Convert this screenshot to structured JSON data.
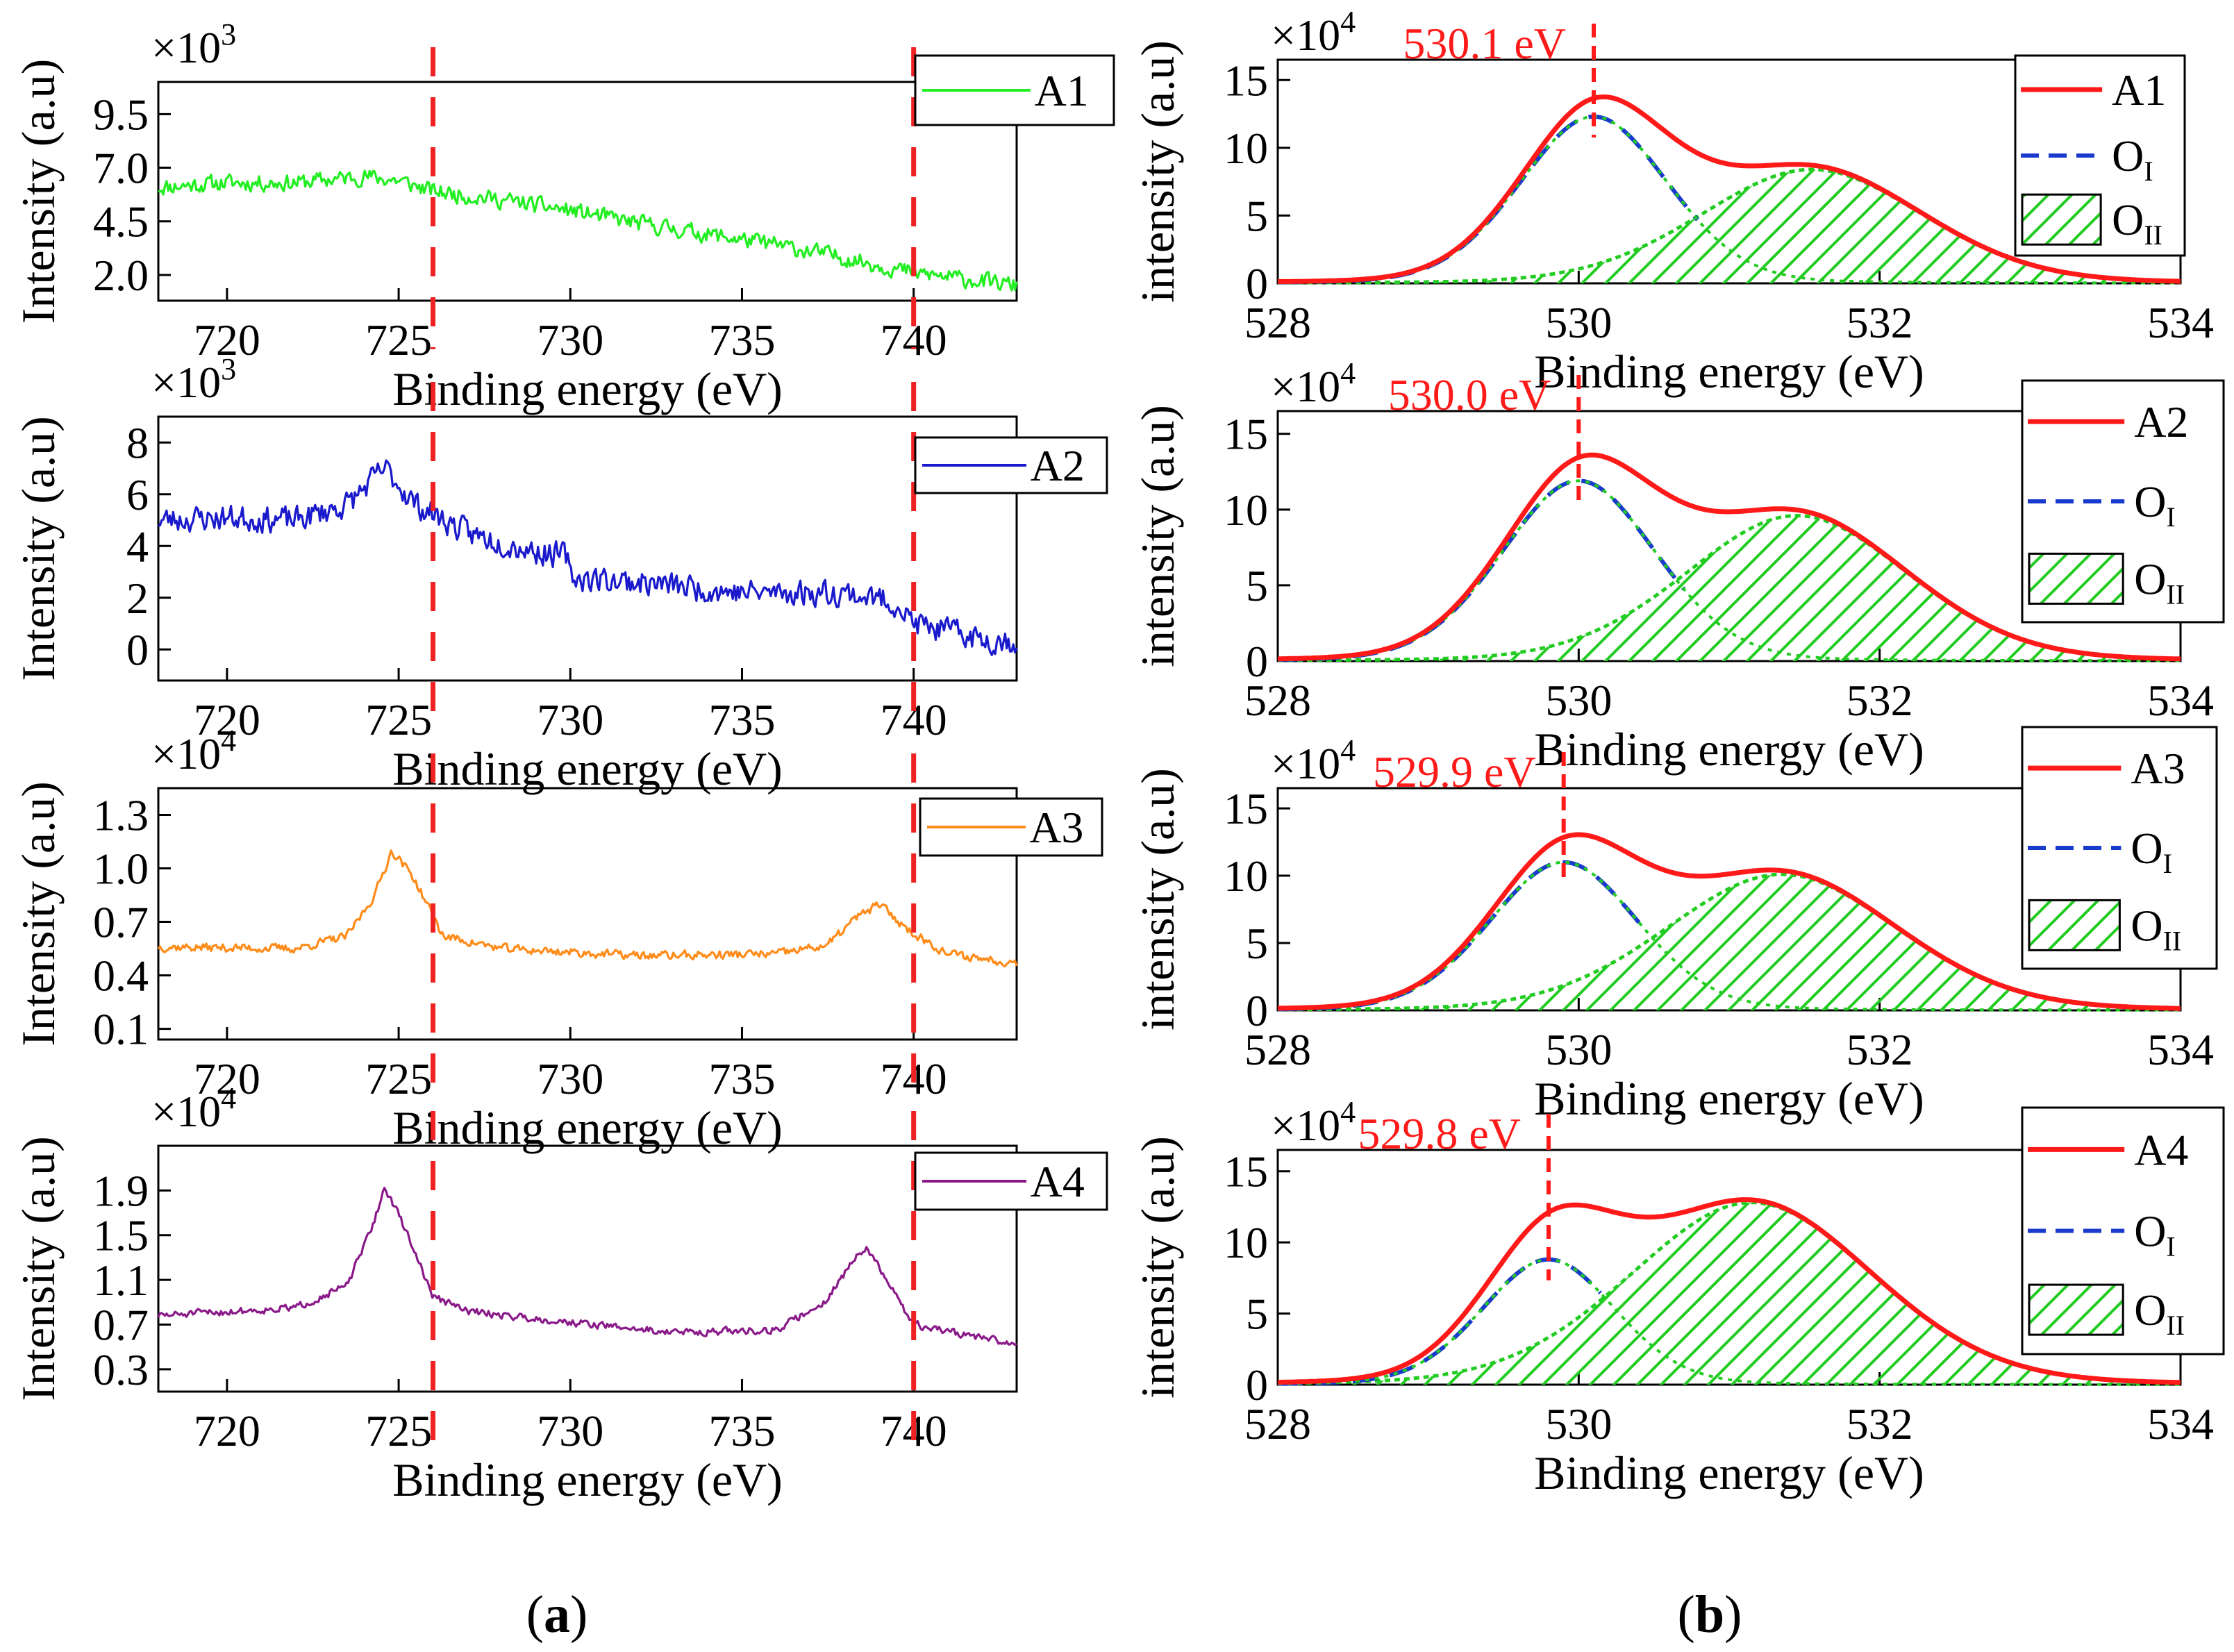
{
  "figure": {
    "panel_labels": [
      {
        "open": "(",
        "letter": "a",
        "close": ")"
      },
      {
        "open": "(",
        "letter": "b",
        "close": ")"
      }
    ]
  },
  "chart_data": [
    {
      "type": "line",
      "id": "a1",
      "xlabel": "Binding energy (eV)",
      "ylabel": "Intensity (a.u)",
      "multiplier_base": "×10",
      "multiplier_exp": "3",
      "xlim": [
        718,
        743
      ],
      "ylim": [
        0.8,
        11.0
      ],
      "xticks": [
        720,
        725,
        730,
        735,
        740
      ],
      "xtick_labels": [
        "720",
        "725",
        "730",
        "735",
        "740"
      ],
      "yticks": [
        2.0,
        4.5,
        7.0,
        9.5
      ],
      "ytick_labels": [
        "2.0",
        "4.5",
        "7.0",
        "9.5"
      ],
      "series": [
        {
          "name": "A1",
          "color": "#22ee22",
          "seed": 11,
          "noise": 0.35,
          "points": [
            [
              718,
              6.1
            ],
            [
              720,
              6.3
            ],
            [
              722,
              6.3
            ],
            [
              724,
              6.6
            ],
            [
              725,
              6.4
            ],
            [
              726,
              5.9
            ],
            [
              728,
              5.5
            ],
            [
              730,
              5.0
            ],
            [
              732,
              4.4
            ],
            [
              734,
              3.9
            ],
            [
              736,
              3.4
            ],
            [
              738,
              2.8
            ],
            [
              740,
              2.1
            ],
            [
              742,
              1.7
            ],
            [
              743,
              1.5
            ]
          ]
        }
      ],
      "vlines": [
        726,
        740
      ],
      "vline_color": "#ee2222",
      "legend_position": "top-right"
    },
    {
      "type": "line",
      "id": "a2",
      "xlabel": "Binding energy (eV)",
      "ylabel": "Intensity (a.u)",
      "multiplier_base": "×10",
      "multiplier_exp": "3",
      "xlim": [
        718,
        743
      ],
      "ylim": [
        -1.2,
        9.0
      ],
      "xticks": [
        720,
        725,
        730,
        735,
        740
      ],
      "xtick_labels": [
        "720",
        "725",
        "730",
        "735",
        "740"
      ],
      "yticks": [
        0,
        2,
        4,
        6,
        8
      ],
      "ytick_labels": [
        "0",
        "2",
        "4",
        "6",
        "8"
      ],
      "series": [
        {
          "name": "A2",
          "color": "#1a1acc",
          "seed": 23,
          "noise": 0.45,
          "points": [
            [
              718,
              5.0
            ],
            [
              720,
              5.1
            ],
            [
              722,
              5.0
            ],
            [
              723.5,
              5.6
            ],
            [
              724.6,
              7.0
            ],
            [
              725.5,
              5.6
            ],
            [
              727,
              4.5
            ],
            [
              729,
              3.8
            ],
            [
              729.9,
              3.6
            ],
            [
              730,
              2.8
            ],
            [
              732,
              2.6
            ],
            [
              735,
              2.2
            ],
            [
              738,
              2.2
            ],
            [
              739.5,
              1.8
            ],
            [
              740,
              1.0
            ],
            [
              742,
              0.4
            ],
            [
              743,
              0.3
            ]
          ]
        }
      ],
      "vlines": [
        726,
        740
      ],
      "vline_color": "#ee2222",
      "legend_position": "top-right"
    },
    {
      "type": "line",
      "id": "a3",
      "xlabel": "Binding energy (eV)",
      "ylabel": "Intensity (a.u)",
      "multiplier_base": "×10",
      "multiplier_exp": "4",
      "xlim": [
        718,
        743
      ],
      "ylim": [
        0.04,
        1.45
      ],
      "xticks": [
        720,
        725,
        730,
        735,
        740
      ],
      "xtick_labels": [
        "720",
        "725",
        "730",
        "735",
        "740"
      ],
      "yticks": [
        0.1,
        0.4,
        0.7,
        1.0,
        1.3
      ],
      "ytick_labels": [
        "0.1",
        "0.4",
        "0.7",
        "1.0",
        "1.3"
      ],
      "series": [
        {
          "name": "A3",
          "color": "#ff8c1a",
          "seed": 37,
          "noise": 0.022,
          "points": [
            [
              718,
              0.56
            ],
            [
              722,
              0.55
            ],
            [
              723.5,
              0.62
            ],
            [
              724.3,
              0.85
            ],
            [
              724.8,
              1.1
            ],
            [
              725.4,
              0.96
            ],
            [
              726.3,
              0.62
            ],
            [
              728,
              0.55
            ],
            [
              732,
              0.51
            ],
            [
              736,
              0.52
            ],
            [
              737.5,
              0.57
            ],
            [
              738.3,
              0.72
            ],
            [
              739,
              0.8
            ],
            [
              739.8,
              0.66
            ],
            [
              741,
              0.52
            ],
            [
              743,
              0.47
            ]
          ]
        }
      ],
      "vlines": [
        726,
        740
      ],
      "vline_color": "#ee2222",
      "legend_position": "top-right"
    },
    {
      "type": "line",
      "id": "a4",
      "xlabel": "Binding energy (eV)",
      "ylabel": "Intensity (a.u)",
      "multiplier_base": "×10",
      "multiplier_exp": "4",
      "xlim": [
        718,
        743
      ],
      "ylim": [
        0.1,
        2.3
      ],
      "xticks": [
        720,
        725,
        730,
        735,
        740
      ],
      "xtick_labels": [
        "720",
        "725",
        "730",
        "735",
        "740"
      ],
      "yticks": [
        0.3,
        0.7,
        1.1,
        1.5,
        1.9
      ],
      "ytick_labels": [
        "0.3",
        "0.7",
        "1.1",
        "1.5",
        "1.9"
      ],
      "series": [
        {
          "name": "A4",
          "color": "#8a1a8a",
          "seed": 51,
          "noise": 0.03,
          "points": [
            [
              718,
              0.78
            ],
            [
              722,
              0.85
            ],
            [
              723.5,
              1.05
            ],
            [
              724.2,
              1.55
            ],
            [
              724.6,
              1.93
            ],
            [
              725.2,
              1.55
            ],
            [
              726,
              0.95
            ],
            [
              727,
              0.82
            ],
            [
              730,
              0.72
            ],
            [
              733,
              0.63
            ],
            [
              736,
              0.65
            ],
            [
              737.4,
              0.9
            ],
            [
              738.2,
              1.25
            ],
            [
              738.6,
              1.4
            ],
            [
              739.3,
              1.05
            ],
            [
              740,
              0.7
            ],
            [
              742,
              0.58
            ],
            [
              743,
              0.52
            ]
          ]
        }
      ],
      "vlines": [
        726,
        740
      ],
      "vline_color": "#ee2222",
      "legend_position": "top-right"
    },
    {
      "type": "area",
      "id": "b1",
      "xlabel": "Binding energy (eV)",
      "ylabel": "intensity (a.u)",
      "multiplier_base": "×10",
      "multiplier_exp": "4",
      "xlim": [
        528,
        534
      ],
      "ylim": [
        0,
        16.5
      ],
      "xticks": [
        528,
        530,
        532,
        534
      ],
      "xtick_labels": [
        "528",
        "530",
        "532",
        "534"
      ],
      "yticks": [
        0,
        5,
        10,
        15
      ],
      "ytick_labels": [
        "0",
        "5",
        "10",
        "15"
      ],
      "peak_label": "530.1 eV",
      "peak_x": 530.1,
      "oi": {
        "center": 530.1,
        "amp": 12.3,
        "sigma": 0.5,
        "shown_until": 530.8
      },
      "oii": {
        "center": 531.55,
        "amp": 8.4,
        "sigma": 0.75
      },
      "sigma_fraction": 0.12,
      "legend": {
        "a_label": "A1",
        "o_label": "O",
        "oi_sub": "I",
        "oii_sub": "II"
      },
      "colors": {
        "total": "#ff1a1a",
        "oi": "#1a3acc",
        "oii": "#22cc22"
      }
    },
    {
      "type": "area",
      "id": "b2",
      "xlabel": "Binding energy (eV)",
      "ylabel": "intensity (a.u)",
      "multiplier_base": "×10",
      "multiplier_exp": "4",
      "xlim": [
        528,
        534
      ],
      "ylim": [
        0,
        16.5
      ],
      "xticks": [
        528,
        530,
        532,
        534
      ],
      "xtick_labels": [
        "528",
        "530",
        "532",
        "534"
      ],
      "yticks": [
        0,
        5,
        10,
        15
      ],
      "ytick_labels": [
        "0",
        "5",
        "10",
        "15"
      ],
      "peak_label": "530.0 eV",
      "peak_x": 530.0,
      "oi": {
        "center": 530.0,
        "amp": 11.9,
        "sigma": 0.52,
        "shown_until": 530.7
      },
      "oii": {
        "center": 531.45,
        "amp": 9.6,
        "sigma": 0.75
      },
      "sigma_fraction": 0.12,
      "legend": {
        "a_label": "A2",
        "o_label": "O",
        "oi_sub": "I",
        "oii_sub": "II"
      },
      "colors": {
        "total": "#ff1a1a",
        "oi": "#1a3acc",
        "oii": "#22cc22"
      }
    },
    {
      "type": "area",
      "id": "b3",
      "xlabel": "Binding energy (eV)",
      "ylabel": "intensity (a.u)",
      "multiplier_base": "×10",
      "multiplier_exp": "4",
      "xlim": [
        528,
        534
      ],
      "ylim": [
        0,
        16.5
      ],
      "xticks": [
        528,
        530,
        532,
        534
      ],
      "xtick_labels": [
        "528",
        "530",
        "532",
        "534"
      ],
      "yticks": [
        0,
        5,
        10,
        15
      ],
      "ytick_labels": [
        "0",
        "5",
        "10",
        "15"
      ],
      "peak_label": "529.9 eV",
      "peak_x": 529.9,
      "oi": {
        "center": 529.9,
        "amp": 11.0,
        "sigma": 0.5,
        "shown_until": 530.45
      },
      "oii": {
        "center": 531.35,
        "amp": 10.1,
        "sigma": 0.78
      },
      "sigma_fraction": 0.12,
      "legend": {
        "a_label": "A3",
        "o_label": "O",
        "oi_sub": "I",
        "oii_sub": "II"
      },
      "colors": {
        "total": "#ff1a1a",
        "oi": "#1a3acc",
        "oii": "#22cc22"
      }
    },
    {
      "type": "area",
      "id": "b4",
      "xlabel": "Binding energy (eV)",
      "ylabel": "intensity (a.u)",
      "multiplier_base": "×10",
      "multiplier_exp": "4",
      "xlim": [
        528,
        534
      ],
      "ylim": [
        0,
        16.5
      ],
      "xticks": [
        528,
        530,
        532,
        534
      ],
      "xtick_labels": [
        "528",
        "530",
        "532",
        "534"
      ],
      "yticks": [
        0,
        5,
        10,
        15
      ],
      "ytick_labels": [
        "0",
        "5",
        "10",
        "15"
      ],
      "peak_label": "529.8 eV",
      "peak_x": 529.8,
      "oi": {
        "center": 529.8,
        "amp": 8.8,
        "sigma": 0.45,
        "shown_until": 530.15
      },
      "oii": {
        "center": 531.15,
        "amp": 12.8,
        "sigma": 0.82
      },
      "sigma_fraction": 0.12,
      "legend": {
        "a_label": "A4",
        "o_label": "O",
        "oi_sub": "I",
        "oii_sub": "II"
      },
      "colors": {
        "total": "#ff1a1a",
        "oi": "#1a3acc",
        "oii": "#22cc22"
      }
    }
  ]
}
